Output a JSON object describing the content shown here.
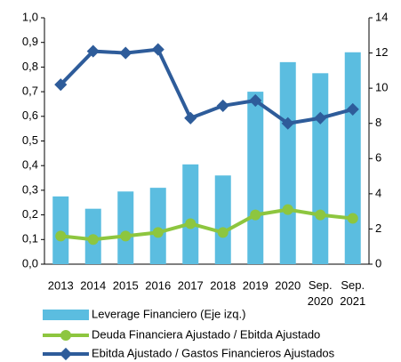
{
  "chart_data": {
    "type": "bar-line",
    "categories": [
      "2013",
      "2014",
      "2015",
      "2016",
      "2017",
      "2018",
      "2019",
      "2020",
      "Sep. 2020",
      "Sep. 2021"
    ],
    "series": [
      {
        "name": "Leverage Financiero (Eje izq.)",
        "type": "bar",
        "color": "#5bbde0",
        "values": [
          0.275,
          0.225,
          0.295,
          0.31,
          0.405,
          0.36,
          0.7,
          0.82,
          0.775,
          0.86
        ]
      },
      {
        "name": "Deuda Financiera Ajustado / Ebitda Ajustado",
        "type": "line",
        "axis": "y2",
        "color": "#8dc63f",
        "values": [
          1.6,
          1.4,
          1.6,
          1.8,
          2.3,
          1.8,
          2.8,
          3.1,
          2.8,
          2.6
        ]
      },
      {
        "name": "Ebitda Ajustado / Gastos Financieros Ajustados",
        "type": "line",
        "axis": "y2",
        "color": "#2e5c9a",
        "values": [
          10.2,
          12.1,
          12.0,
          12.2,
          8.3,
          9.0,
          9.3,
          8.0,
          8.3,
          8.8
        ]
      }
    ],
    "ylim": [
      0,
      1.0
    ],
    "yticks": [
      {
        "value": 0,
        "label": "0,0"
      },
      {
        "value": 0.1,
        "label": "0,1"
      },
      {
        "value": 0.2,
        "label": "0,2"
      },
      {
        "value": 0.3,
        "label": "0,3"
      },
      {
        "value": 0.4,
        "label": "0,4"
      },
      {
        "value": 0.5,
        "label": "0,5"
      },
      {
        "value": 0.6,
        "label": "0,6"
      },
      {
        "value": 0.7,
        "label": "0,7"
      },
      {
        "value": 0.8,
        "label": "0,8"
      },
      {
        "value": 0.9,
        "label": "0,9"
      },
      {
        "value": 1.0,
        "label": "1,0"
      }
    ],
    "y2lim": [
      0,
      14
    ],
    "y2ticks": [
      0,
      2,
      4,
      6,
      8,
      10,
      12,
      14
    ]
  }
}
